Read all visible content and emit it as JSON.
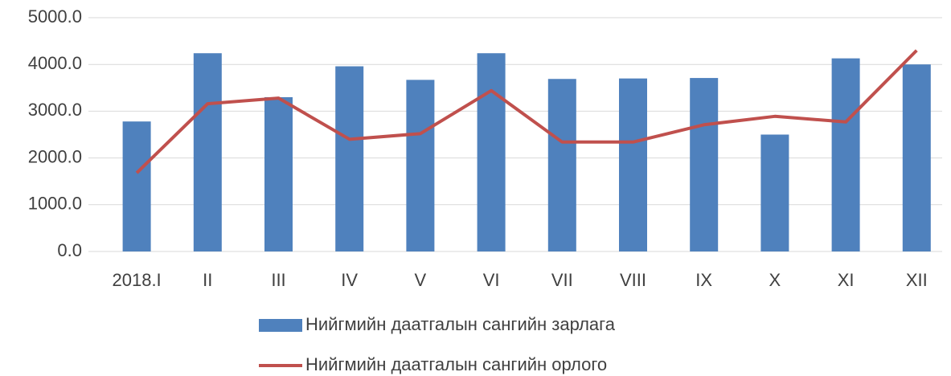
{
  "chart_data": {
    "type": "bar_line",
    "categories": [
      "2018.I",
      "II",
      "III",
      "IV",
      "V",
      "VI",
      "VII",
      "VIII",
      "IX",
      "X",
      "XI",
      "XII"
    ],
    "series": [
      {
        "name": "Нийгмийн даатгалын сангийн зарлага",
        "type": "bar",
        "color": "#4f81bd",
        "values": [
          2780,
          4240,
          3300,
          3960,
          3670,
          4240,
          3690,
          3700,
          3710,
          2500,
          4130,
          4000
        ]
      },
      {
        "name": "Нийгмийн даатгалын сангийн орлого",
        "type": "line",
        "color": "#c0504d",
        "values": [
          1680,
          3160,
          3280,
          2400,
          2520,
          3440,
          2340,
          2340,
          2710,
          2890,
          2770,
          4300
        ]
      }
    ],
    "ylim": [
      0,
      5000
    ],
    "yticks": [
      {
        "value": 0,
        "label": "0.0"
      },
      {
        "value": 1000,
        "label": "1000.0"
      },
      {
        "value": 2000,
        "label": "2000.0"
      },
      {
        "value": 3000,
        "label": "3000.0"
      },
      {
        "value": 4000,
        "label": "4000.0"
      },
      {
        "value": 5000,
        "label": "5000.0"
      }
    ],
    "grid": true,
    "legend": "bottom"
  }
}
